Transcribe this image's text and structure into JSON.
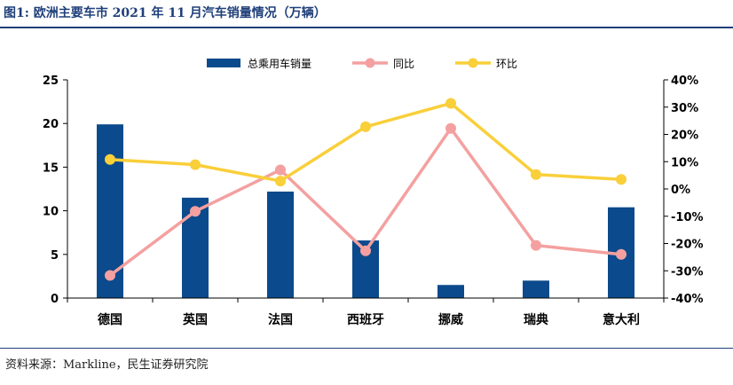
{
  "title": "图1: 欧洲主要车市 2021 年 11 月汽车销量情况（万辆）",
  "source": "资料来源：Markline，民生证券研究院",
  "chart_data": {
    "type": "bar",
    "categories": [
      "德国",
      "英国",
      "法国",
      "西班牙",
      "挪威",
      "瑞典",
      "意大利"
    ],
    "series": [
      {
        "name": "总乘用车销量",
        "type": "bar",
        "axis": "left",
        "color": "#0b4a8c",
        "values": [
          19.9,
          11.5,
          12.2,
          6.6,
          1.5,
          2.0,
          10.4
        ]
      },
      {
        "name": "同比",
        "type": "line",
        "axis": "right",
        "color": "#f4a0a0",
        "values": [
          -31.7,
          -8.2,
          7.0,
          -22.7,
          22.2,
          -20.7,
          -24.0
        ]
      },
      {
        "name": "环比",
        "type": "line",
        "axis": "right",
        "color": "#f9cf3a",
        "values": [
          10.8,
          8.9,
          2.9,
          22.8,
          31.4,
          5.3,
          3.5
        ]
      }
    ],
    "left_axis": {
      "ylim": [
        0,
        25
      ],
      "ticks": [
        "0",
        "5",
        "10",
        "15",
        "20",
        "25"
      ]
    },
    "right_axis": {
      "ylim": [
        -40,
        40
      ],
      "ticks": [
        "-40%",
        "-30%",
        "-20%",
        "-10%",
        "0%",
        "10%",
        "20%",
        "30%",
        "40%"
      ]
    },
    "legend_position": "top-center",
    "grid": false
  }
}
